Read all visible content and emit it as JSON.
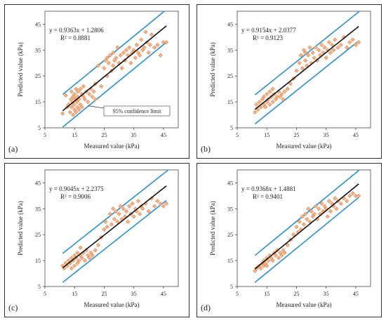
{
  "chart_data": [
    {
      "type": "scatter",
      "panel_label": "(a)",
      "xlabel": "Measured value (kPa)",
      "ylabel": "Predicted value (kPa)",
      "xlim": [
        5,
        50
      ],
      "ylim": [
        5,
        50
      ],
      "xticks": [
        5,
        15,
        25,
        35,
        45
      ],
      "yticks": [
        5,
        15,
        25,
        35,
        45
      ],
      "equation": "y = 0.9363x + 1.2806",
      "r2": "R² = 0.8881",
      "annotation": "95% confidence limit",
      "fit": {
        "slope": 0.9363,
        "intercept": 1.2806
      },
      "confidence_offset": 6.3,
      "x": [
        11,
        12,
        12.5,
        13,
        13.5,
        13.8,
        14,
        14,
        14.2,
        14.5,
        14.5,
        14.8,
        15,
        15,
        15.2,
        15.5,
        15.5,
        15.8,
        16,
        16,
        16.2,
        16.5,
        16.5,
        17,
        17,
        17.5,
        17.5,
        18,
        18,
        18.5,
        19,
        19.5,
        20,
        20.5,
        21,
        21.5,
        22,
        22,
        23,
        24,
        25,
        25.5,
        26,
        26,
        26.5,
        27,
        27.5,
        28,
        28,
        28.5,
        29,
        29.5,
        30,
        30.5,
        31,
        31.5,
        32,
        32.5,
        33,
        33.5,
        34,
        34.5,
        35,
        35.5,
        36,
        36.5,
        37,
        37.5,
        38,
        38.5,
        39,
        39.5,
        40,
        40.5,
        41,
        42,
        43,
        44,
        45,
        46
      ],
      "y": [
        10.5,
        17.5,
        13,
        14,
        11,
        16,
        13,
        19,
        15,
        10,
        17,
        14,
        12,
        18,
        16,
        11,
        20,
        15,
        13,
        17,
        19,
        12,
        16,
        14,
        20,
        18,
        13,
        17,
        21,
        16,
        19,
        15,
        18,
        20,
        17,
        19,
        22,
        16,
        29,
        21,
        28,
        31,
        25,
        32,
        30,
        33,
        27,
        34,
        29,
        31,
        32,
        36,
        30,
        33,
        28,
        34,
        31,
        35,
        33,
        36,
        30,
        34,
        35,
        32,
        37,
        34,
        33,
        39,
        35,
        36,
        42,
        38,
        34,
        37,
        41,
        36,
        37,
        33,
        38,
        38
      ]
    },
    {
      "type": "scatter",
      "panel_label": "(b)",
      "xlabel": "Measured value (kPa)",
      "ylabel": "Predicted value (kPa)",
      "xlim": [
        5,
        50
      ],
      "ylim": [
        5,
        50
      ],
      "xticks": [
        5,
        15,
        25,
        35,
        45
      ],
      "yticks": [
        5,
        15,
        25,
        35,
        45
      ],
      "equation": "y = 0.9154x + 2.0377",
      "r2": "R² = 0.9123",
      "annotation": "",
      "fit": {
        "slope": 0.9154,
        "intercept": 2.0377
      },
      "confidence_offset": 5.6,
      "x": [
        11,
        11.5,
        12,
        12.5,
        13,
        13.5,
        14,
        14,
        14.5,
        15,
        15,
        15.5,
        16,
        16,
        16.5,
        17,
        17,
        17.5,
        18,
        18.5,
        19,
        19.5,
        20,
        20.5,
        21,
        22,
        23,
        24,
        25,
        26,
        26.5,
        27,
        27.5,
        28,
        28,
        28.5,
        29,
        29.5,
        30,
        30.5,
        31,
        31.5,
        32,
        32.5,
        33,
        33.5,
        34,
        34.5,
        35,
        35.5,
        36,
        36.5,
        37,
        37.5,
        38,
        39,
        40,
        41,
        42,
        43,
        44,
        45,
        46
      ],
      "y": [
        11,
        14,
        12,
        15,
        13,
        16,
        14,
        17,
        13,
        15,
        18,
        16,
        14,
        19,
        17,
        15,
        20,
        18,
        16,
        17,
        19,
        17,
        18,
        16,
        19,
        20,
        22,
        24,
        27,
        30,
        33,
        28,
        35,
        31,
        34,
        29,
        33,
        36,
        30,
        34,
        32,
        36,
        31,
        35,
        33,
        37,
        34,
        36,
        32,
        35,
        38,
        34,
        37,
        35,
        39,
        36,
        37,
        40,
        36,
        38,
        39,
        37,
        38
      ]
    },
    {
      "type": "scatter",
      "panel_label": "(c)",
      "xlabel": "Measured value (kPa)",
      "ylabel": "Predicted value (kPa)",
      "xlim": [
        5,
        50
      ],
      "ylim": [
        5,
        50
      ],
      "xticks": [
        5,
        15,
        25,
        35,
        45
      ],
      "yticks": [
        5,
        15,
        25,
        35,
        45
      ],
      "equation": "y = 0.9045x + 2.2375",
      "r2": "R² = 0.9006",
      "annotation": "",
      "fit": {
        "slope": 0.9045,
        "intercept": 2.2375
      },
      "confidence_offset": 5.6,
      "x": [
        11,
        11.5,
        12,
        12.5,
        13,
        13.5,
        14,
        14,
        14.5,
        15,
        15,
        15.5,
        16,
        16,
        16.5,
        17,
        17,
        17.5,
        18,
        18.5,
        19,
        19.5,
        20,
        20.5,
        21,
        22,
        23,
        24,
        25,
        25.5,
        26,
        27,
        27.5,
        28,
        28.5,
        29,
        29.5,
        30,
        30.5,
        31,
        31.5,
        32,
        32.5,
        33,
        33.5,
        34,
        34.5,
        35,
        35.5,
        36,
        36.5,
        37,
        37.5,
        38,
        39,
        40,
        41,
        42,
        43,
        44,
        45,
        46
      ],
      "y": [
        13,
        12,
        14,
        13,
        15,
        14,
        12,
        16,
        15,
        13,
        17,
        16,
        14,
        18,
        15,
        17,
        20,
        16,
        18,
        15,
        19,
        17,
        16,
        18,
        17,
        19,
        21,
        24,
        27,
        30,
        28,
        33,
        29,
        35,
        31,
        34,
        30,
        33,
        36,
        31,
        35,
        32,
        34,
        30,
        36,
        33,
        37,
        32,
        35,
        34,
        38,
        33,
        36,
        35,
        37,
        34,
        39,
        36,
        38,
        37,
        36,
        37
      ]
    },
    {
      "type": "scatter",
      "panel_label": "(d)",
      "xlabel": "Measured value (kPa)",
      "ylabel": "Predicted value (kPa)",
      "xlim": [
        5,
        50
      ],
      "ylim": [
        5,
        50
      ],
      "xticks": [
        5,
        15,
        25,
        35,
        45
      ],
      "yticks": [
        5,
        15,
        25,
        35,
        45
      ],
      "equation": "y = 0.9368x + 1.4881",
      "r2": "R² = 0.9401",
      "annotation": "",
      "fit": {
        "slope": 0.9368,
        "intercept": 1.4881
      },
      "confidence_offset": 5.2,
      "x": [
        11,
        11.5,
        12,
        12.5,
        13,
        13.5,
        14,
        14,
        14.5,
        15,
        15,
        15.5,
        16,
        16.5,
        17,
        17.5,
        18,
        18.5,
        19,
        19.5,
        20,
        20.5,
        21,
        22,
        23,
        24,
        25,
        25.5,
        26,
        26.5,
        27,
        27.5,
        28,
        28.5,
        29,
        29.5,
        30,
        30.5,
        31,
        31.5,
        32,
        32.5,
        33,
        33.5,
        34,
        34.5,
        35,
        35.5,
        36,
        36.5,
        37,
        37.5,
        38,
        38.5,
        39,
        40,
        41,
        42,
        43,
        44,
        45,
        46
      ],
      "y": [
        11,
        12,
        12.5,
        13,
        12,
        14,
        13,
        15,
        14,
        13,
        16,
        15,
        17,
        16,
        15,
        18,
        17,
        19,
        16,
        18,
        17,
        19,
        18,
        21,
        23,
        25,
        28,
        26,
        30,
        27,
        32,
        29,
        33,
        31,
        35,
        30,
        34,
        32,
        33,
        36,
        31,
        35,
        33,
        37,
        34,
        36,
        35,
        32,
        38,
        34,
        37,
        36,
        39,
        35,
        38,
        37,
        39,
        38,
        40,
        41,
        40,
        40
      ]
    }
  ]
}
